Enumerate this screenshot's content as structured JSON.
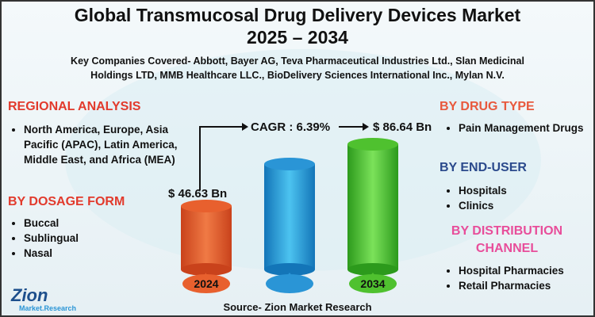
{
  "title_lines": [
    "Global Transmucosal Drug Delivery Devices Market",
    "2025 – 2034"
  ],
  "subtitle_lines": [
    "Key Companies Covered- Abbott, Bayer AG, Teva Pharmaceutical Industries Ltd., Slan Medicinal",
    "Holdings LTD, MMB Healthcare LLC., BioDelivery Sciences International Inc., Mylan N.V."
  ],
  "regional": {
    "heading": "REGIONAL ANALYSIS",
    "items": [
      "North America, Europe, Asia Pacific (APAC), Latin America, Middle East, and Africa (MEA)"
    ]
  },
  "dosage_form": {
    "heading": "BY DOSAGE FORM",
    "items": [
      "Buccal",
      "Sublingual",
      "Nasal"
    ]
  },
  "drug_type": {
    "heading": "BY DRUG TYPE",
    "items": [
      "Pain Management Drugs"
    ]
  },
  "end_user": {
    "heading": "BY END-USER",
    "items": [
      "Hospitals",
      "Clinics"
    ]
  },
  "distribution": {
    "heading": "BY DISTRIBUTION CHANNEL",
    "items": [
      "Hospital Pharmacies",
      "Retail Pharmacies"
    ]
  },
  "center": {
    "cagr": "CAGR : 6.39%",
    "value_2034": "$ 86.64 Bn",
    "value_2024": "$ 46.63 Bn",
    "year_start": "2024",
    "year_end": "2034"
  },
  "source": "Source- Zion Market Research",
  "logo": {
    "name": "Zion",
    "tagline": "Market.Research"
  }
}
